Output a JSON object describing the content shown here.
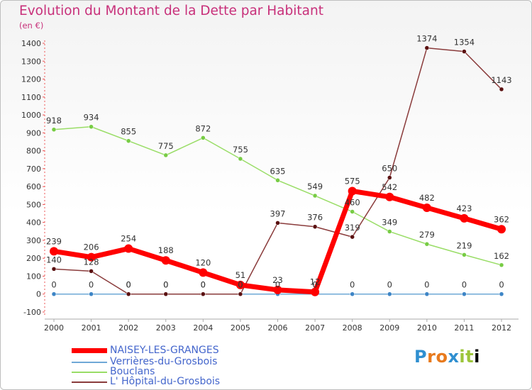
{
  "title": "Evolution du Montant de la Dette par Habitant",
  "unit": "(en €)",
  "logo": "Proxiti",
  "chart_data": {
    "type": "line",
    "x": [
      "2000",
      "2001",
      "2002",
      "2003",
      "2004",
      "2005",
      "2006",
      "2007",
      "2008",
      "2009",
      "2010",
      "2011",
      "2012"
    ],
    "ylim": [
      -100,
      1400
    ],
    "yticks": [
      -100,
      0,
      100,
      200,
      300,
      400,
      500,
      600,
      700,
      800,
      900,
      1000,
      1100,
      1200,
      1300,
      1400
    ],
    "grid": false,
    "legend_position": "bottom",
    "series": [
      {
        "name": "NAISEY-LES-GRANGES",
        "color": "#ff0000",
        "point_color": "#ff0000",
        "label_color": "#ff0000",
        "width": 7,
        "values": [
          239,
          206,
          254,
          188,
          120,
          51,
          23,
          12,
          575,
          542,
          482,
          423,
          362
        ],
        "labels": [
          "239",
          "206",
          "254",
          "188",
          "120",
          "51",
          "23",
          "12",
          "575",
          "542",
          "482",
          "423",
          "362"
        ]
      },
      {
        "name": "Verrières-du-Grosbois",
        "color": "#6fa8d6",
        "point_color": "#3d85c6",
        "label_color": "#5a8fbf",
        "width": 1.5,
        "values": [
          0,
          0,
          0,
          0,
          0,
          0,
          0,
          0,
          0,
          0,
          0,
          0,
          0
        ],
        "labels": [
          "0",
          "0",
          "0",
          "0",
          "0",
          "0",
          "0",
          "0",
          "0",
          "0",
          "0",
          "0",
          "0"
        ]
      },
      {
        "name": "Bouclans",
        "color": "#99dd66",
        "point_color": "#77cc44",
        "label_color": "#77cc44",
        "width": 1.5,
        "values": [
          918,
          934,
          855,
          775,
          872,
          755,
          635,
          549,
          460,
          349,
          279,
          219,
          162
        ],
        "labels": [
          "918",
          "934",
          "855",
          "775",
          "872",
          "755",
          "635",
          "549",
          "460",
          "349",
          "279",
          "219",
          "162"
        ]
      },
      {
        "name": "L' Hôpital-du-Grosbois",
        "color": "#8a3b3b",
        "point_color": "#5a1010",
        "label_color": "#7a2a2a",
        "width": 1.5,
        "values": [
          140,
          128,
          0,
          0,
          0,
          0,
          397,
          376,
          319,
          650,
          1374,
          1354,
          1143
        ],
        "labels": [
          "140",
          "128",
          "0",
          "0",
          "0",
          "0",
          "397",
          "376",
          "319",
          "650",
          "1374",
          "1354",
          "1143"
        ]
      }
    ]
  }
}
